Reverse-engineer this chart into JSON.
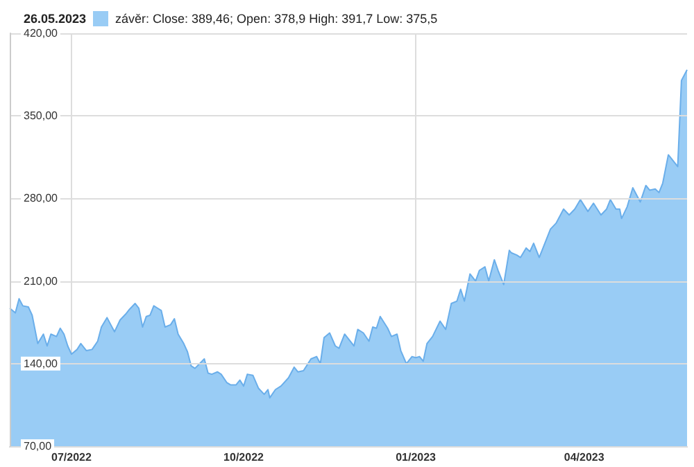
{
  "chart_data": {
    "type": "area",
    "title": "26.05.2023",
    "x": [
      "2022-05-29",
      "2022-06-01",
      "2022-06-03",
      "2022-06-05",
      "2022-06-08",
      "2022-06-10",
      "2022-06-13",
      "2022-06-16",
      "2022-06-18",
      "2022-06-20",
      "2022-06-23",
      "2022-06-25",
      "2022-06-27",
      "2022-06-29",
      "2022-07-01",
      "2022-07-04",
      "2022-07-06",
      "2022-07-09",
      "2022-07-12",
      "2022-07-15",
      "2022-07-17",
      "2022-07-20",
      "2022-07-22",
      "2022-07-24",
      "2022-07-27",
      "2022-07-30",
      "2022-08-01",
      "2022-08-04",
      "2022-08-06",
      "2022-08-08",
      "2022-08-10",
      "2022-08-12",
      "2022-08-14",
      "2022-08-16",
      "2022-08-18",
      "2022-08-20",
      "2022-08-23",
      "2022-08-25",
      "2022-08-27",
      "2022-08-30",
      "2022-09-01",
      "2022-09-03",
      "2022-09-05",
      "2022-09-10",
      "2022-09-12",
      "2022-09-14",
      "2022-09-17",
      "2022-09-19",
      "2022-09-22",
      "2022-09-24",
      "2022-09-27",
      "2022-09-29",
      "2022-10-01",
      "2022-10-03",
      "2022-10-06",
      "2022-10-09",
      "2022-10-12",
      "2022-10-14",
      "2022-10-15",
      "2022-10-18",
      "2022-10-21",
      "2022-10-25",
      "2022-10-28",
      "2022-10-30",
      "2022-11-02",
      "2022-11-06",
      "2022-11-09",
      "2022-11-11",
      "2022-11-13",
      "2022-11-16",
      "2022-11-19",
      "2022-11-21",
      "2022-11-24",
      "2022-11-29",
      "2022-12-01",
      "2022-12-04",
      "2022-12-07",
      "2022-12-09",
      "2022-12-11",
      "2022-12-13",
      "2022-12-17",
      "2022-12-19",
      "2022-12-22",
      "2022-12-24",
      "2022-12-27",
      "2022-12-30",
      "2023-01-01",
      "2023-01-03",
      "2023-01-05",
      "2023-01-07",
      "2023-01-10",
      "2023-01-14",
      "2023-01-17",
      "2023-01-20",
      "2023-01-23",
      "2023-01-25",
      "2023-01-27",
      "2023-01-30",
      "2023-02-02",
      "2023-02-04",
      "2023-02-07",
      "2023-02-09",
      "2023-02-12",
      "2023-02-14",
      "2023-02-17",
      "2023-02-20",
      "2023-02-21",
      "2023-02-24",
      "2023-02-26",
      "2023-03-01",
      "2023-03-03",
      "2023-03-05",
      "2023-03-08",
      "2023-03-11",
      "2023-03-14",
      "2023-03-17",
      "2023-03-21",
      "2023-03-24",
      "2023-03-27",
      "2023-03-30",
      "2023-04-03",
      "2023-04-06",
      "2023-04-10",
      "2023-04-13",
      "2023-04-15",
      "2023-04-18",
      "2023-04-20",
      "2023-04-21",
      "2023-04-24",
      "2023-04-27",
      "2023-05-01",
      "2023-05-04",
      "2023-05-06",
      "2023-05-09",
      "2023-05-11",
      "2023-05-13",
      "2023-05-16",
      "2023-05-18",
      "2023-05-21",
      "2023-05-23",
      "2023-05-26"
    ],
    "series": [
      {
        "name": "závěr: Close: 389,46; Open: 378,9 High: 391,7 Low: 375,5",
        "color": "#99ccf5",
        "values": [
          187,
          183,
          195,
          189,
          188,
          181,
          157,
          165,
          155,
          165,
          163,
          170,
          165,
          155,
          148,
          152,
          157,
          151,
          152,
          159,
          171,
          179,
          173,
          167,
          177,
          182,
          186,
          191,
          187,
          171,
          180,
          181,
          189,
          187,
          185,
          171,
          173,
          178,
          165,
          157,
          150,
          138,
          136,
          144,
          132,
          131,
          133,
          131,
          124,
          122,
          122,
          126,
          121,
          131,
          130,
          119,
          114,
          118,
          111,
          118,
          121,
          128,
          137,
          133,
          134,
          144,
          146,
          140,
          162,
          166,
          155,
          153,
          165,
          155,
          169,
          166,
          159,
          171,
          170,
          180,
          170,
          163,
          165,
          151,
          140,
          146,
          145,
          146,
          142,
          157,
          163,
          176,
          169,
          191,
          193,
          203,
          193,
          216,
          210,
          219,
          222,
          210,
          228,
          219,
          207,
          236,
          234,
          232,
          230,
          238,
          235,
          242,
          230,
          242,
          254,
          259,
          271,
          266,
          271,
          279,
          269,
          276,
          266,
          271,
          279,
          271,
          271,
          263,
          273,
          289,
          277,
          291,
          287,
          288,
          285,
          293,
          317,
          313,
          307,
          380,
          389
        ]
      }
    ],
    "xlim": [
      "2022-05-29",
      "2023-05-26"
    ],
    "xticks": [
      {
        "value": "2022-07-01",
        "label": "07/2022"
      },
      {
        "value": "2022-10-01",
        "label": "10/2022"
      },
      {
        "value": "2023-01-01",
        "label": "01/2023"
      },
      {
        "value": "2023-04-01",
        "label": "04/2023"
      }
    ],
    "ylim": [
      70,
      420
    ],
    "yticks": [
      {
        "value": 70,
        "label": "70,00"
      },
      {
        "value": 140,
        "label": "140,00"
      },
      {
        "value": 210,
        "label": "210,00"
      },
      {
        "value": 280,
        "label": "280,00"
      },
      {
        "value": 350,
        "label": "350,00"
      },
      {
        "value": 420,
        "label": "420,00"
      }
    ],
    "grid": "y",
    "ref_lines": [
      {
        "axis": "x",
        "value": "2022-07-01",
        "color": "#dddddd"
      },
      {
        "axis": "x",
        "value": "2023-01-01",
        "color": "#dddddd"
      }
    ],
    "legend": "top left",
    "marker": "none"
  }
}
